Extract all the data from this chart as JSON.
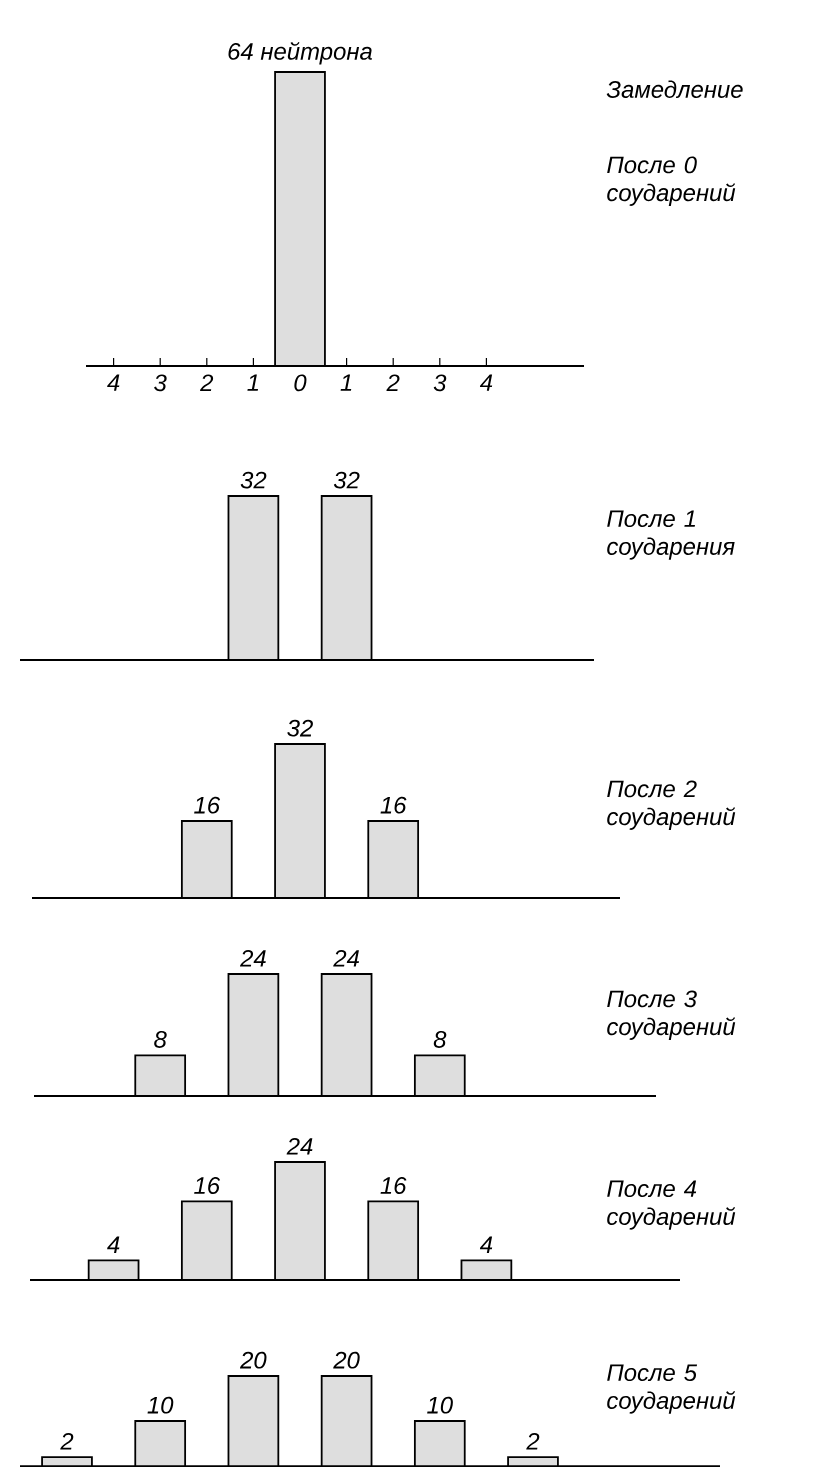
{
  "chart_data": [
    {
      "type": "bar",
      "annotations": [
        "Замедление",
        "После 0 соударений"
      ],
      "categories": [
        "4",
        "3",
        "2",
        "1",
        "0",
        "1",
        "2",
        "3",
        "4"
      ],
      "values": [
        null,
        null,
        null,
        null,
        64,
        null,
        null,
        null,
        null
      ],
      "value_labels": [
        null,
        null,
        null,
        null,
        "64 нейтрона",
        null,
        null,
        null,
        null
      ],
      "color": "#dedede",
      "ylim": [
        0,
        64
      ],
      "tick_labels": "x"
    },
    {
      "type": "bar",
      "annotations": [
        "После 1 соударения"
      ],
      "categories": [
        null,
        null
      ],
      "values": [
        32,
        32
      ],
      "data_labels": true,
      "color": "#dedede",
      "ylim": [
        0,
        32
      ],
      "tick_labels": false
    },
    {
      "type": "bar",
      "annotations": [
        "После 2 соударений"
      ],
      "categories": [
        null,
        null,
        null
      ],
      "values": [
        16,
        32,
        16
      ],
      "data_labels": true,
      "color": "#dedede",
      "ylim": [
        0,
        32
      ],
      "tick_labels": false
    },
    {
      "type": "bar",
      "annotations": [
        "После 3 соударений"
      ],
      "categories": [
        null,
        null,
        null,
        null
      ],
      "values": [
        8,
        24,
        24,
        8
      ],
      "data_labels": true,
      "color": "#dedede",
      "ylim": [
        0,
        24
      ],
      "tick_labels": false
    },
    {
      "type": "bar",
      "annotations": [
        "После 4 соударений"
      ],
      "categories": [
        null,
        null,
        null,
        null,
        null
      ],
      "values": [
        4,
        16,
        24,
        16,
        4
      ],
      "data_labels": true,
      "color": "#dedede",
      "ylim": [
        0,
        24
      ],
      "tick_labels": false
    },
    {
      "type": "bar",
      "annotations": [
        "После 5 соударений"
      ],
      "categories": [
        null,
        null,
        null,
        null,
        null,
        null
      ],
      "values": [
        2,
        10,
        20,
        20,
        10,
        2
      ],
      "data_labels": true,
      "color": "#dedede",
      "ylim": [
        0,
        20
      ],
      "tick_labels": false
    }
  ]
}
